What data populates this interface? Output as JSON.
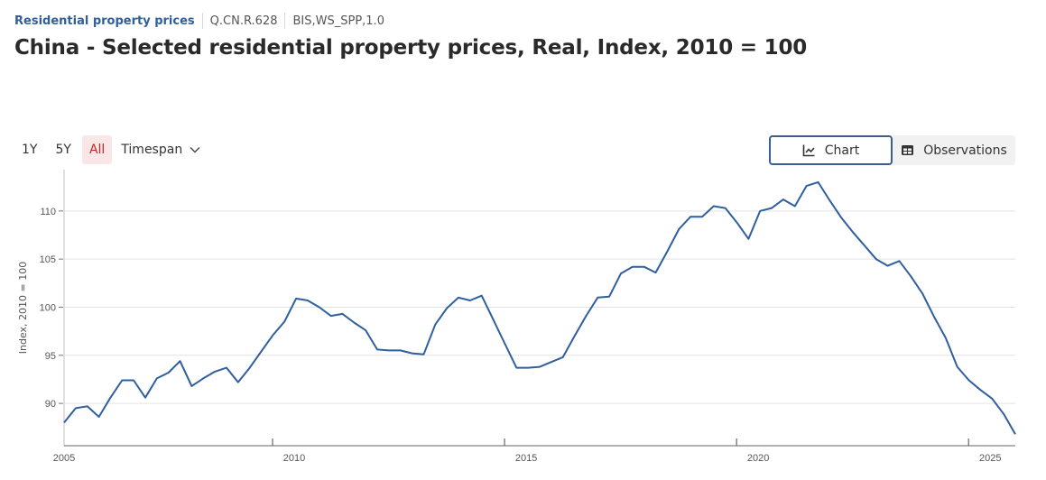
{
  "breadcrumb": {
    "dataset_link": "Residential property prices",
    "series_key": "Q.CN.R.628",
    "dataflow": "BIS,WS_SPP,1.0"
  },
  "page_title": "China - Selected residential property prices, Real, Index, 2010 = 100",
  "range_selector": {
    "options": [
      "1Y",
      "5Y",
      "All"
    ],
    "active": "All",
    "timespan_label": "Timespan"
  },
  "view_toggle": {
    "chart_label": "Chart",
    "observations_label": "Observations",
    "active": "Chart"
  },
  "colors": {
    "line": "#2f5f9e",
    "active_range_bg": "#f9e6e6",
    "active_range_text": "#c02b2b",
    "link": "#2f5f9e"
  },
  "chart_data": {
    "type": "line",
    "title": "China - Selected residential property prices, Real, Index, 2010 = 100",
    "xlabel": "",
    "ylabel": "Index, 2010 = 100",
    "frequency": "quarterly",
    "x_start_label": "2005",
    "x_ticks": [
      "2005",
      "2010",
      "2015",
      "2020",
      "2025"
    ],
    "y_ticks": [
      90,
      95,
      100,
      105,
      110
    ],
    "ylim": [
      85.6,
      114.3
    ],
    "grid": "horizontal",
    "legend": "none",
    "series": [
      {
        "name": "China - Selected residential property prices, Real",
        "values": [
          88.0,
          89.5,
          89.7,
          88.6,
          90.6,
          92.4,
          92.4,
          90.6,
          92.6,
          93.2,
          94.4,
          91.8,
          92.6,
          93.3,
          93.7,
          92.2,
          93.7,
          95.4,
          97.1,
          98.5,
          100.9,
          100.7,
          100.0,
          99.1,
          99.3,
          98.4,
          97.6,
          95.6,
          95.5,
          95.5,
          95.2,
          95.1,
          98.2,
          99.9,
          101.0,
          100.7,
          101.2,
          98.7,
          96.2,
          93.7,
          93.7,
          93.8,
          94.3,
          94.8,
          97.0,
          99.1,
          101.0,
          101.1,
          103.5,
          104.2,
          104.2,
          103.6,
          105.8,
          108.1,
          109.4,
          109.4,
          110.5,
          110.3,
          108.8,
          107.1,
          110.0,
          110.3,
          111.2,
          110.5,
          112.6,
          113.0,
          111.1,
          109.3,
          107.8,
          106.4,
          105.0,
          104.3,
          104.8,
          103.2,
          101.4,
          99.0,
          96.8,
          93.8,
          92.4,
          91.4,
          90.5,
          88.9,
          86.8
        ]
      }
    ]
  }
}
